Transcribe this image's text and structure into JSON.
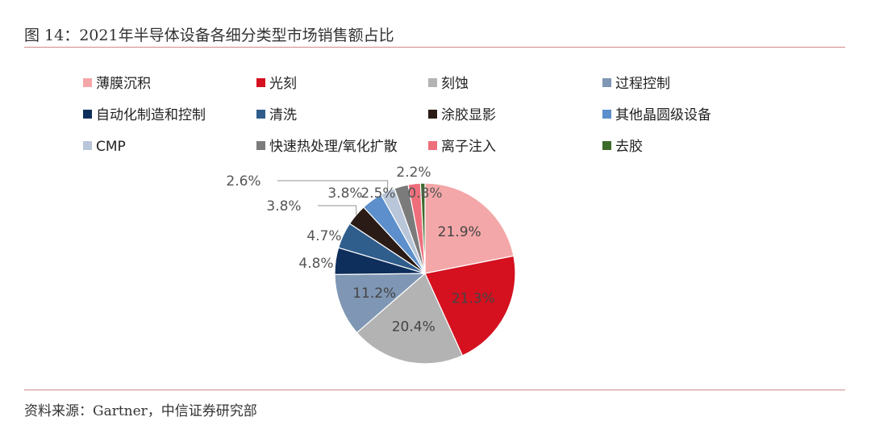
{
  "figure": {
    "title": "图 14：2021年半导体设备各细分类型市场销售额占比",
    "source": "资料来源：Gartner，中信证券研究部"
  },
  "chart_data": {
    "type": "pie",
    "title": "",
    "legend_position": "top",
    "unit": "%",
    "slices": [
      {
        "name": "薄膜沉积",
        "value": 21.9,
        "label": "21.9%",
        "color": "#f4a7a8"
      },
      {
        "name": "光刻",
        "value": 21.3,
        "label": "21.3%",
        "color": "#d5101f"
      },
      {
        "name": "刻蚀",
        "value": 20.4,
        "label": "20.4%",
        "color": "#b3b3b3"
      },
      {
        "name": "过程控制",
        "value": 11.2,
        "label": "11.2%",
        "color": "#7f97b4"
      },
      {
        "name": "自动化制造和控制",
        "value": 4.8,
        "label": "4.8%",
        "color": "#0e2f5c"
      },
      {
        "name": "清洗",
        "value": 4.7,
        "label": "4.7%",
        "color": "#2f5d8c"
      },
      {
        "name": "涂胶显影",
        "value": 3.8,
        "label": "3.8%",
        "color": "#2a1b16"
      },
      {
        "name": "其他晶圆级设备",
        "value": 3.8,
        "label": "3.8%",
        "color": "#5c8fcb"
      },
      {
        "name": "CMP",
        "value": 2.6,
        "label": "2.6%",
        "color": "#b9c6d9"
      },
      {
        "name": "快速热处理/氧化扩散",
        "value": 2.5,
        "label": "2.5%",
        "color": "#7b7b7b"
      },
      {
        "name": "离子注入",
        "value": 2.2,
        "label": "2.2%",
        "color": "#ee6e7b"
      },
      {
        "name": "去胶",
        "value": 0.8,
        "label": "0.8%",
        "color": "#3d6b2a"
      }
    ]
  }
}
